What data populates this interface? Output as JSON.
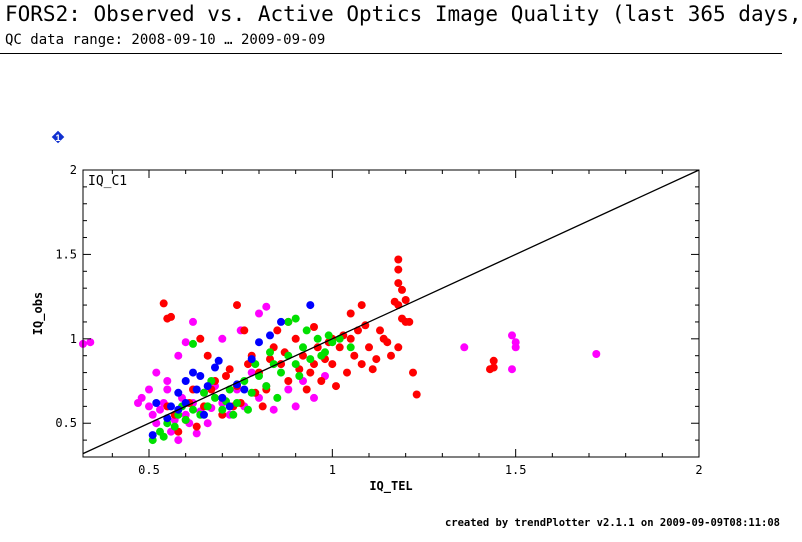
{
  "header": {
    "title": "FORS2: Observed vs. Active Optics Image Quality (last 365 days,",
    "subtitle": "QC data range: 2008-09-10 … 2009-09-09"
  },
  "footer": {
    "credit": "created by trendPlotter v2.1.1 on 2009-09-09T08:11:08"
  },
  "marker": {
    "label": "1",
    "color": "#1030d0"
  },
  "chart_data": {
    "type": "scatter",
    "panel_label": "IQ_C1",
    "xlabel": "IQ_TEL",
    "ylabel": "IQ_obs",
    "xlim": [
      0.32,
      2.0
    ],
    "ylim": [
      0.3,
      2.0
    ],
    "x_ticks": [
      0.5,
      1,
      1.5,
      2
    ],
    "x_tick_labels": [
      "0.5",
      "1",
      "1.5",
      "2"
    ],
    "y_ticks": [
      0.5,
      1,
      1.5,
      2
    ],
    "y_tick_labels": [
      "0.5",
      "1",
      "1.5",
      "2"
    ],
    "grid": false,
    "reference_line": {
      "from": [
        0.32,
        0.32
      ],
      "to": [
        2.0,
        2.0
      ]
    },
    "series": [
      {
        "color": "#ff00ff",
        "points": [
          [
            0.32,
            0.97
          ],
          [
            0.34,
            0.98
          ],
          [
            0.48,
            0.65
          ],
          [
            0.5,
            0.6
          ],
          [
            0.51,
            0.55
          ],
          [
            0.52,
            0.5
          ],
          [
            0.53,
            0.58
          ],
          [
            0.54,
            0.62
          ],
          [
            0.55,
            0.7
          ],
          [
            0.56,
            0.45
          ],
          [
            0.57,
            0.52
          ],
          [
            0.58,
            0.4
          ],
          [
            0.59,
            0.65
          ],
          [
            0.6,
            0.55
          ],
          [
            0.61,
            0.5
          ],
          [
            0.62,
            0.62
          ],
          [
            0.63,
            0.44
          ],
          [
            0.64,
            0.57
          ],
          [
            0.65,
            0.68
          ],
          [
            0.66,
            0.5
          ],
          [
            0.67,
            0.59
          ],
          [
            0.68,
            0.72
          ],
          [
            0.7,
            0.62
          ],
          [
            0.72,
            0.55
          ],
          [
            0.74,
            0.7
          ],
          [
            0.76,
            0.6
          ],
          [
            0.78,
            0.8
          ],
          [
            0.8,
            0.65
          ],
          [
            0.82,
            0.72
          ],
          [
            0.84,
            0.58
          ],
          [
            0.86,
            0.85
          ],
          [
            0.88,
            0.7
          ],
          [
            0.9,
            0.6
          ],
          [
            0.92,
            0.75
          ],
          [
            0.95,
            0.65
          ],
          [
            0.98,
            0.78
          ],
          [
            0.58,
            0.9
          ],
          [
            0.6,
            0.98
          ],
          [
            0.62,
            1.1
          ],
          [
            0.7,
            1.0
          ],
          [
            0.75,
            1.05
          ],
          [
            0.8,
            1.15
          ],
          [
            0.82,
            1.19
          ],
          [
            0.55,
            0.75
          ],
          [
            0.5,
            0.7
          ],
          [
            0.52,
            0.8
          ],
          [
            0.47,
            0.62
          ],
          [
            1.36,
            0.95
          ],
          [
            1.49,
            1.02
          ],
          [
            1.5,
            0.98
          ],
          [
            1.5,
            0.95
          ],
          [
            1.49,
            0.82
          ],
          [
            1.72,
            0.91
          ]
        ]
      },
      {
        "color": "#ff0000",
        "points": [
          [
            0.54,
            1.21
          ],
          [
            0.55,
            1.12
          ],
          [
            0.56,
            1.13
          ],
          [
            0.74,
            1.2
          ],
          [
            0.95,
            1.07
          ],
          [
            1.0,
            1.0
          ],
          [
            1.05,
            1.15
          ],
          [
            1.08,
            1.2
          ],
          [
            1.17,
            1.22
          ],
          [
            1.18,
            1.2
          ],
          [
            1.19,
            1.12
          ],
          [
            1.2,
            1.1
          ],
          [
            1.18,
            1.47
          ],
          [
            1.18,
            1.41
          ],
          [
            1.18,
            1.33
          ],
          [
            1.19,
            1.29
          ],
          [
            1.2,
            1.23
          ],
          [
            1.21,
            1.1
          ],
          [
            1.22,
            0.8
          ],
          [
            1.23,
            0.67
          ],
          [
            1.44,
            0.87
          ],
          [
            1.44,
            0.83
          ],
          [
            1.43,
            0.82
          ],
          [
            0.55,
            0.6
          ],
          [
            0.6,
            0.52
          ],
          [
            0.62,
            0.7
          ],
          [
            0.65,
            0.6
          ],
          [
            0.68,
            0.75
          ],
          [
            0.7,
            0.65
          ],
          [
            0.72,
            0.82
          ],
          [
            0.74,
            0.72
          ],
          [
            0.75,
            0.62
          ],
          [
            0.78,
            0.9
          ],
          [
            0.8,
            0.8
          ],
          [
            0.82,
            0.7
          ],
          [
            0.84,
            0.95
          ],
          [
            0.86,
            0.85
          ],
          [
            0.88,
            0.75
          ],
          [
            0.9,
            1.0
          ],
          [
            0.92,
            0.9
          ],
          [
            0.94,
            0.8
          ],
          [
            0.96,
            0.95
          ],
          [
            0.98,
            0.88
          ],
          [
            1.0,
            0.85
          ],
          [
            1.02,
            0.95
          ],
          [
            1.04,
            0.8
          ],
          [
            1.06,
            0.9
          ],
          [
            1.08,
            0.85
          ],
          [
            1.1,
            0.95
          ],
          [
            1.12,
            0.88
          ],
          [
            1.14,
            1.0
          ],
          [
            1.16,
            0.9
          ],
          [
            1.18,
            0.95
          ],
          [
            1.11,
            0.82
          ],
          [
            0.76,
            1.05
          ],
          [
            0.66,
            0.9
          ],
          [
            0.64,
            1.0
          ],
          [
            0.85,
            1.05
          ],
          [
            0.88,
            1.1
          ],
          [
            0.7,
            0.55
          ],
          [
            0.58,
            0.45
          ],
          [
            0.63,
            0.48
          ],
          [
            0.73,
            0.6
          ],
          [
            0.79,
            0.68
          ],
          [
            0.81,
            0.6
          ],
          [
            0.93,
            0.7
          ],
          [
            0.97,
            0.75
          ],
          [
            1.01,
            0.72
          ],
          [
            1.03,
            1.02
          ],
          [
            1.07,
            1.05
          ],
          [
            1.09,
            1.08
          ],
          [
            0.57,
            0.55
          ],
          [
            0.61,
            0.62
          ],
          [
            0.67,
            0.7
          ],
          [
            0.71,
            0.78
          ],
          [
            0.77,
            0.85
          ],
          [
            0.83,
            0.88
          ],
          [
            0.87,
            0.92
          ],
          [
            0.91,
            0.82
          ],
          [
            0.95,
            0.85
          ],
          [
            0.99,
            0.98
          ],
          [
            1.05,
            1.0
          ],
          [
            1.13,
            1.05
          ],
          [
            1.15,
            0.98
          ]
        ]
      },
      {
        "color": "#00e000",
        "points": [
          [
            0.51,
            0.4
          ],
          [
            0.53,
            0.45
          ],
          [
            0.55,
            0.5
          ],
          [
            0.57,
            0.48
          ],
          [
            0.58,
            0.55
          ],
          [
            0.6,
            0.52
          ],
          [
            0.62,
            0.58
          ],
          [
            0.64,
            0.55
          ],
          [
            0.66,
            0.6
          ],
          [
            0.68,
            0.65
          ],
          [
            0.7,
            0.58
          ],
          [
            0.72,
            0.7
          ],
          [
            0.74,
            0.62
          ],
          [
            0.76,
            0.75
          ],
          [
            0.78,
            0.68
          ],
          [
            0.8,
            0.78
          ],
          [
            0.82,
            0.72
          ],
          [
            0.84,
            0.85
          ],
          [
            0.86,
            0.8
          ],
          [
            0.88,
            0.9
          ],
          [
            0.9,
            0.85
          ],
          [
            0.92,
            0.95
          ],
          [
            0.94,
            0.88
          ],
          [
            0.96,
            1.0
          ],
          [
            0.98,
            0.92
          ],
          [
            1.0,
            0.98
          ],
          [
            1.02,
            1.0
          ],
          [
            0.88,
            1.1
          ],
          [
            0.9,
            1.12
          ],
          [
            0.62,
            0.97
          ],
          [
            0.67,
            0.75
          ],
          [
            0.73,
            0.55
          ],
          [
            0.79,
            0.85
          ],
          [
            0.85,
            0.65
          ],
          [
            0.91,
            0.78
          ],
          [
            0.97,
            0.9
          ],
          [
            1.05,
            0.95
          ],
          [
            0.54,
            0.42
          ],
          [
            0.59,
            0.6
          ],
          [
            0.65,
            0.68
          ],
          [
            0.71,
            0.63
          ],
          [
            0.77,
            0.58
          ],
          [
            0.83,
            0.92
          ],
          [
            0.93,
            1.05
          ],
          [
            0.99,
            1.02
          ]
        ]
      },
      {
        "color": "#0000ff",
        "points": [
          [
            0.51,
            0.43
          ],
          [
            0.52,
            0.62
          ],
          [
            0.55,
            0.53
          ],
          [
            0.56,
            0.6
          ],
          [
            0.58,
            0.68
          ],
          [
            0.6,
            0.75
          ],
          [
            0.62,
            0.8
          ],
          [
            0.64,
            0.78
          ],
          [
            0.66,
            0.72
          ],
          [
            0.68,
            0.83
          ],
          [
            0.69,
            0.87
          ],
          [
            0.7,
            0.65
          ],
          [
            0.74,
            0.73
          ],
          [
            0.76,
            0.7
          ],
          [
            0.8,
            0.98
          ],
          [
            0.86,
            1.1
          ],
          [
            0.94,
            1.2
          ],
          [
            0.6,
            0.62
          ],
          [
            0.65,
            0.55
          ],
          [
            0.72,
            0.6
          ],
          [
            0.58,
            0.58
          ],
          [
            0.63,
            0.7
          ],
          [
            0.83,
            1.02
          ],
          [
            0.78,
            0.88
          ]
        ]
      }
    ]
  }
}
